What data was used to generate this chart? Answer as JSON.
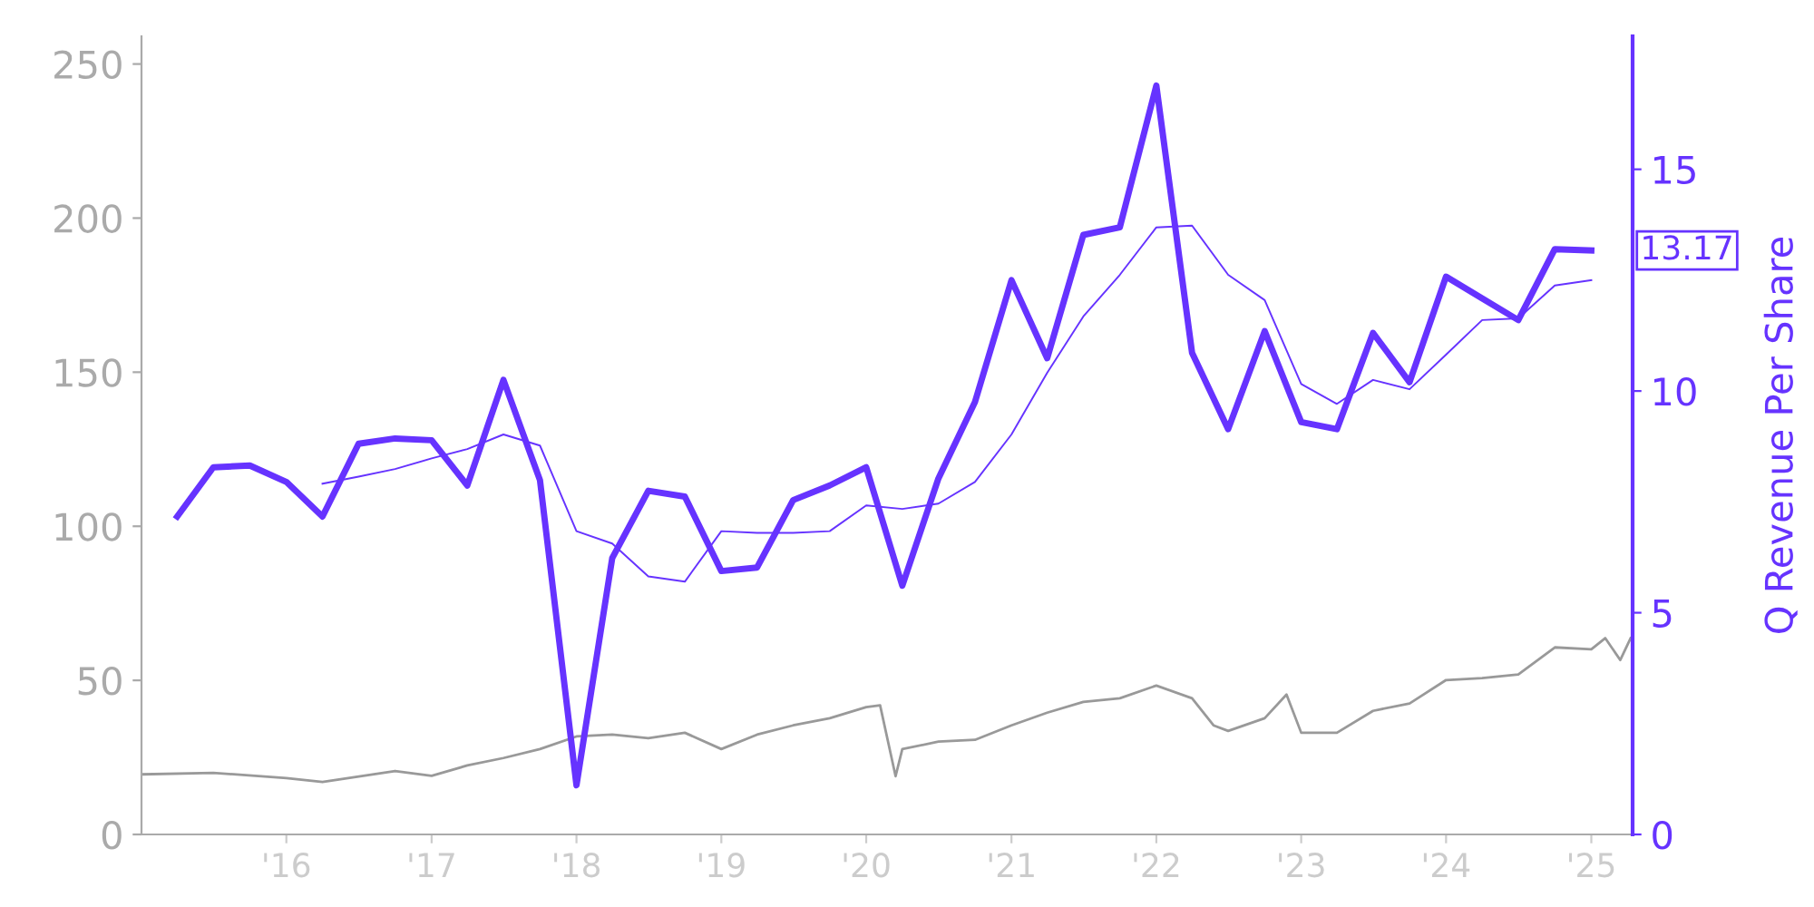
{
  "chart_data": {
    "type": "line",
    "y2label": "Q Revenue Per Share",
    "xlim": [
      "2015-01-01",
      "2025-04-15"
    ],
    "xticks": [
      {
        "value": "2016-01-01",
        "label": "'16"
      },
      {
        "value": "2017-01-01",
        "label": "'17"
      },
      {
        "value": "2018-01-01",
        "label": "'18"
      },
      {
        "value": "2019-01-01",
        "label": "'19"
      },
      {
        "value": "2020-01-01",
        "label": "'20"
      },
      {
        "value": "2021-01-01",
        "label": "'21"
      },
      {
        "value": "2022-01-01",
        "label": "'22"
      },
      {
        "value": "2023-01-01",
        "label": "'23"
      },
      {
        "value": "2024-01-01",
        "label": "'24"
      },
      {
        "value": "2025-01-01",
        "label": "'25"
      }
    ],
    "ylim": [
      0,
      259
    ],
    "yticks": [
      0,
      50,
      100,
      150,
      200,
      250
    ],
    "y2lim": [
      0,
      18
    ],
    "y2ticks": [
      0,
      5,
      10,
      15
    ],
    "grid": false,
    "legend": false,
    "marker": "none",
    "line_style": "solid",
    "annotations": [
      "13.17"
    ],
    "series": [
      {
        "color": "#999999",
        "axis": "y",
        "x": [
          "2015-01-01",
          "2015-07-01",
          "2016-01-01",
          "2016-04-01",
          "2016-10-01",
          "2017-01-01",
          "2017-04-01",
          "2017-07-01",
          "2017-10-01",
          "2018-01-01",
          "2018-04-01",
          "2018-07-01",
          "2018-10-01",
          "2019-01-01",
          "2019-04-01",
          "2019-07-01",
          "2019-10-01",
          "2020-01-01",
          "2020-02-05",
          "2020-03-15",
          "2020-04-01",
          "2020-07-01",
          "2020-10-01",
          "2021-01-01",
          "2021-04-01",
          "2021-07-01",
          "2021-10-01",
          "2022-01-01",
          "2022-04-01",
          "2022-05-25",
          "2022-07-01",
          "2022-10-01",
          "2022-11-25",
          "2023-01-01",
          "2023-04-01",
          "2023-07-01",
          "2023-10-01",
          "2024-01-01",
          "2024-04-01",
          "2024-07-01",
          "2024-10-01",
          "2025-01-01",
          "2025-02-05",
          "2025-03-15",
          "2025-04-10"
        ],
        "values": [
          19.5,
          20,
          18.3,
          17,
          20.6,
          19,
          22.4,
          24.8,
          27.7,
          31.8,
          32.4,
          31.2,
          33,
          27.7,
          32.4,
          35.4,
          37.7,
          41.3,
          41.9,
          18.9,
          27.7,
          30.1,
          30.7,
          35.4,
          39.5,
          43,
          44.2,
          48.3,
          44.2,
          35.4,
          33.6,
          37.7,
          45.4,
          33,
          33,
          40.1,
          42.5,
          50.1,
          50.7,
          51.9,
          60.7,
          60.1,
          63.7,
          56.6,
          63.7
        ]
      },
      {
        "color": "#6633ff",
        "axis": "y2",
        "x": [
          "2015-04",
          "2015-07",
          "2015-10",
          "2016-01",
          "2016-04",
          "2016-07",
          "2016-10",
          "2017-01",
          "2017-04",
          "2017-07",
          "2017-10",
          "2018-01",
          "2018-04",
          "2018-07",
          "2018-10",
          "2019-01",
          "2019-04",
          "2019-07",
          "2019-10",
          "2020-01",
          "2020-04",
          "2020-07",
          "2020-10",
          "2021-01",
          "2021-04",
          "2021-07",
          "2021-10",
          "2022-01",
          "2022-04",
          "2022-07",
          "2022-10",
          "2023-01",
          "2023-04",
          "2023-07",
          "2023-10",
          "2024-01",
          "2024-04",
          "2024-07",
          "2024-10",
          "2025-01"
        ],
        "values": [
          7.17,
          8.28,
          8.32,
          7.95,
          7.17,
          8.81,
          8.93,
          8.89,
          7.87,
          10.25,
          7.99,
          1.11,
          6.23,
          7.75,
          7.62,
          5.94,
          6.02,
          7.54,
          7.87,
          8.28,
          5.61,
          8.03,
          9.75,
          12.5,
          10.74,
          13.52,
          13.69,
          16.89,
          10.86,
          9.14,
          11.35,
          9.3,
          9.14,
          11.31,
          10.2,
          12.58,
          12.09,
          11.6,
          13.2,
          13.17
        ]
      },
      {
        "color": "#6633ff",
        "axis": "y2",
        "x": [
          "2016-04",
          "2016-07",
          "2016-10",
          "2017-01",
          "2017-04",
          "2017-07",
          "2017-10",
          "2018-01",
          "2018-04",
          "2018-07",
          "2018-10",
          "2019-01",
          "2019-04",
          "2019-07",
          "2019-10",
          "2020-01",
          "2020-04",
          "2020-07",
          "2020-10",
          "2021-01",
          "2021-04",
          "2021-07",
          "2021-10",
          "2022-01",
          "2022-04",
          "2022-07",
          "2022-10",
          "2023-01",
          "2023-04",
          "2023-07",
          "2023-10",
          "2024-01",
          "2024-04",
          "2024-07",
          "2024-10",
          "2025-01"
        ],
        "values": [
          7.91,
          8.07,
          8.24,
          8.48,
          8.69,
          9.02,
          8.77,
          6.84,
          6.56,
          5.82,
          5.7,
          6.84,
          6.8,
          6.8,
          6.84,
          7.42,
          7.34,
          7.46,
          7.95,
          9.02,
          10.41,
          11.68,
          12.62,
          13.69,
          13.73,
          12.62,
          12.05,
          10.16,
          9.71,
          10.25,
          10.04,
          10.82,
          11.6,
          11.64,
          12.38,
          12.5
        ]
      }
    ]
  }
}
